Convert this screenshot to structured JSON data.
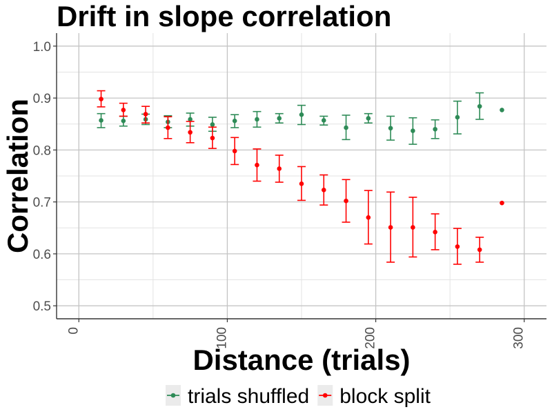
{
  "chart_data": {
    "type": "scatter",
    "title": "Drift in slope correlation",
    "xlabel": "Distance (trials)",
    "ylabel": "Correlation",
    "xlim": [
      -15,
      315
    ],
    "ylim": [
      0.475,
      1.025
    ],
    "x_ticks": [
      0,
      100,
      200,
      300
    ],
    "x_tick_labels": [
      "0",
      "100",
      "200",
      "300"
    ],
    "y_ticks": [
      0.5,
      0.6,
      0.7,
      0.8,
      0.9,
      1.0
    ],
    "y_tick_labels": [
      "0.5",
      "0.6",
      "0.7",
      "0.8",
      "0.9",
      "1.0"
    ],
    "grid": true,
    "legend_position": "bottom",
    "series": [
      {
        "name": "trials shuffled",
        "color": "#2e8b57",
        "points": [
          {
            "x": 15,
            "y": 0.857,
            "lo": 0.843,
            "hi": 0.87
          },
          {
            "x": 30,
            "y": 0.856,
            "lo": 0.846,
            "hi": 0.865
          },
          {
            "x": 45,
            "y": 0.859,
            "lo": 0.849,
            "hi": 0.869
          },
          {
            "x": 60,
            "y": 0.854,
            "lo": 0.843,
            "hi": 0.866
          },
          {
            "x": 75,
            "y": 0.859,
            "lo": 0.846,
            "hi": 0.871
          },
          {
            "x": 90,
            "y": 0.849,
            "lo": 0.836,
            "hi": 0.863
          },
          {
            "x": 105,
            "y": 0.856,
            "lo": 0.843,
            "hi": 0.868
          },
          {
            "x": 120,
            "y": 0.859,
            "lo": 0.844,
            "hi": 0.874
          },
          {
            "x": 135,
            "y": 0.861,
            "lo": 0.852,
            "hi": 0.87
          },
          {
            "x": 150,
            "y": 0.868,
            "lo": 0.849,
            "hi": 0.886
          },
          {
            "x": 165,
            "y": 0.857,
            "lo": 0.848,
            "hi": 0.865
          },
          {
            "x": 180,
            "y": 0.843,
            "lo": 0.82,
            "hi": 0.867
          },
          {
            "x": 195,
            "y": 0.861,
            "lo": 0.852,
            "hi": 0.87
          },
          {
            "x": 210,
            "y": 0.842,
            "lo": 0.819,
            "hi": 0.865
          },
          {
            "x": 225,
            "y": 0.837,
            "lo": 0.811,
            "hi": 0.862
          },
          {
            "x": 240,
            "y": 0.84,
            "lo": 0.822,
            "hi": 0.858
          },
          {
            "x": 255,
            "y": 0.863,
            "lo": 0.831,
            "hi": 0.894
          },
          {
            "x": 270,
            "y": 0.884,
            "lo": 0.859,
            "hi": 0.91
          },
          {
            "x": 285,
            "y": 0.877
          }
        ]
      },
      {
        "name": "block split",
        "color": "#ff0000",
        "points": [
          {
            "x": 15,
            "y": 0.898,
            "lo": 0.883,
            "hi": 0.914
          },
          {
            "x": 30,
            "y": 0.877,
            "lo": 0.865,
            "hi": 0.89
          },
          {
            "x": 45,
            "y": 0.869,
            "lo": 0.852,
            "hi": 0.884
          },
          {
            "x": 60,
            "y": 0.843,
            "lo": 0.822,
            "hi": 0.864
          },
          {
            "x": 75,
            "y": 0.834,
            "lo": 0.814,
            "hi": 0.855
          },
          {
            "x": 90,
            "y": 0.823,
            "lo": 0.803,
            "hi": 0.844
          },
          {
            "x": 105,
            "y": 0.798,
            "lo": 0.772,
            "hi": 0.824
          },
          {
            "x": 120,
            "y": 0.771,
            "lo": 0.74,
            "hi": 0.802
          },
          {
            "x": 135,
            "y": 0.764,
            "lo": 0.738,
            "hi": 0.79
          },
          {
            "x": 150,
            "y": 0.735,
            "lo": 0.703,
            "hi": 0.768
          },
          {
            "x": 165,
            "y": 0.723,
            "lo": 0.694,
            "hi": 0.752
          },
          {
            "x": 180,
            "y": 0.702,
            "lo": 0.661,
            "hi": 0.743
          },
          {
            "x": 195,
            "y": 0.67,
            "lo": 0.619,
            "hi": 0.722
          },
          {
            "x": 210,
            "y": 0.651,
            "lo": 0.584,
            "hi": 0.719
          },
          {
            "x": 225,
            "y": 0.651,
            "lo": 0.594,
            "hi": 0.709
          },
          {
            "x": 240,
            "y": 0.642,
            "lo": 0.608,
            "hi": 0.677
          },
          {
            "x": 255,
            "y": 0.614,
            "lo": 0.58,
            "hi": 0.649
          },
          {
            "x": 270,
            "y": 0.608,
            "lo": 0.584,
            "hi": 0.632
          },
          {
            "x": 285,
            "y": 0.698
          }
        ]
      }
    ]
  }
}
